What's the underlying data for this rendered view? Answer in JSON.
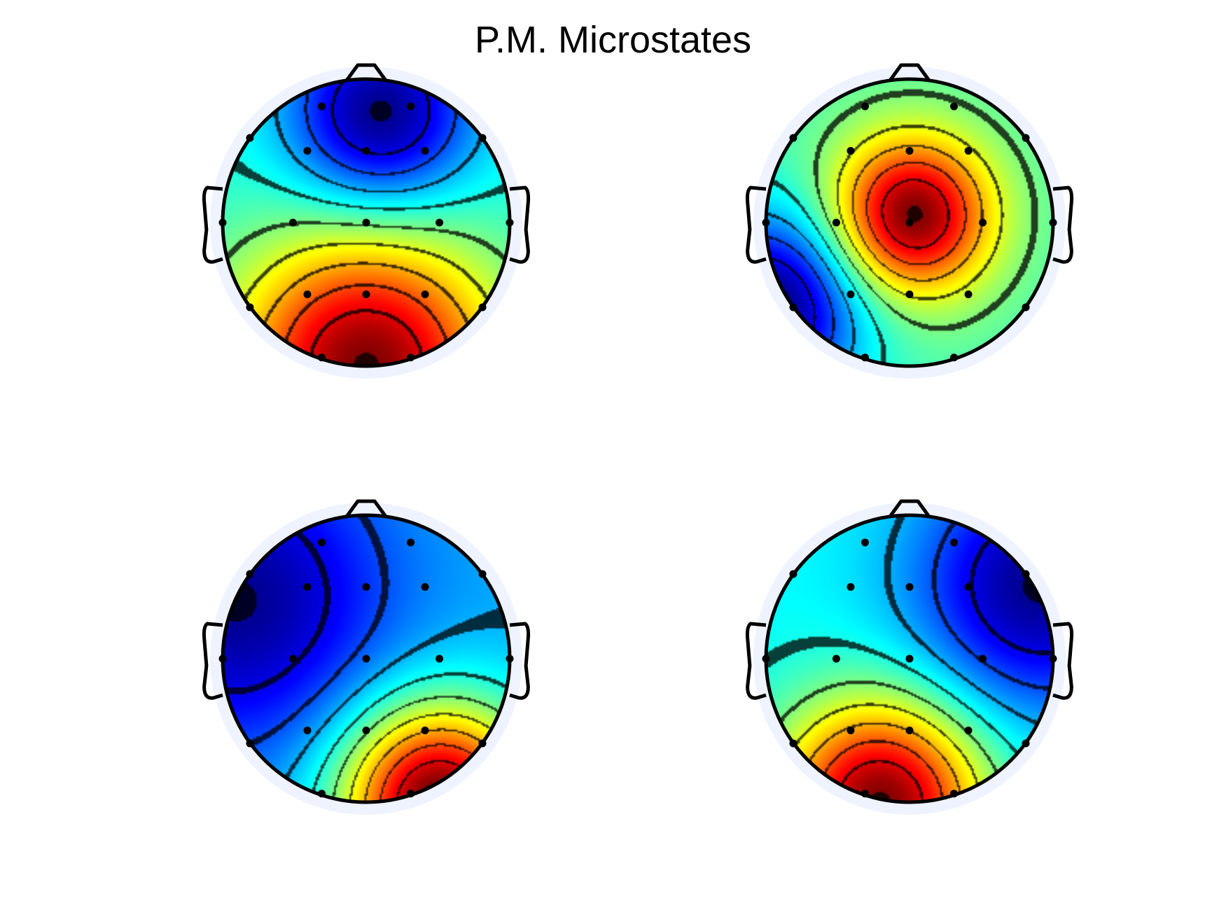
{
  "chart_data": {
    "type": "heatmap",
    "subtype": "eeg-scalp-topography",
    "title": "P.M. Microstates",
    "xlabel": "",
    "ylabel": "",
    "colormap": "jet",
    "colormap_stops": [
      "#00008f",
      "#0000ff",
      "#0080ff",
      "#00ffff",
      "#80ff80",
      "#ffff00",
      "#ff8000",
      "#ff0000",
      "#800000"
    ],
    "grid": false,
    "legend": "none",
    "electrodes": [
      {
        "x": -0.31,
        "y": 0.81
      },
      {
        "x": 0.31,
        "y": 0.81
      },
      {
        "x": -0.81,
        "y": 0.59
      },
      {
        "x": -0.41,
        "y": 0.5
      },
      {
        "x": 0.0,
        "y": 0.5
      },
      {
        "x": 0.41,
        "y": 0.5
      },
      {
        "x": 0.81,
        "y": 0.59
      },
      {
        "x": -0.51,
        "y": 0.0
      },
      {
        "x": 0.0,
        "y": 0.0
      },
      {
        "x": 0.51,
        "y": 0.0
      },
      {
        "x": -0.81,
        "y": -0.59
      },
      {
        "x": -0.41,
        "y": -0.5
      },
      {
        "x": 0.0,
        "y": -0.5
      },
      {
        "x": 0.41,
        "y": -0.5
      },
      {
        "x": 0.81,
        "y": -0.59
      },
      {
        "x": -0.31,
        "y": -0.94
      },
      {
        "x": 0.31,
        "y": -0.94
      },
      {
        "x": -1.0,
        "y": 0.0
      },
      {
        "x": 1.0,
        "y": 0.0
      }
    ],
    "maps": [
      {
        "sources": [
          {
            "x": 0.0,
            "y": -1.0,
            "w": 1.0,
            "s": 0.65
          },
          {
            "x": 0.1,
            "y": 0.75,
            "w": -0.7,
            "s": 0.45
          }
        ],
        "field_range": [
          -1,
          1
        ]
      },
      {
        "sources": [
          {
            "x": 0.02,
            "y": 0.05,
            "w": 1.0,
            "s": 0.38
          },
          {
            "x": -1.0,
            "y": -0.6,
            "w": -0.9,
            "s": 0.45
          }
        ],
        "field_range": [
          -1,
          1
        ]
      },
      {
        "sources": [
          {
            "x": 0.5,
            "y": -1.0,
            "w": 1.0,
            "s": 0.48
          },
          {
            "x": -0.9,
            "y": 0.4,
            "w": -0.4,
            "s": 0.7
          }
        ],
        "field_range": [
          -1,
          1
        ]
      },
      {
        "sources": [
          {
            "x": -0.2,
            "y": -1.0,
            "w": 1.0,
            "s": 0.5
          },
          {
            "x": 0.9,
            "y": 0.5,
            "w": -0.6,
            "s": 0.6
          }
        ],
        "field_range": [
          -1,
          1
        ]
      }
    ]
  }
}
